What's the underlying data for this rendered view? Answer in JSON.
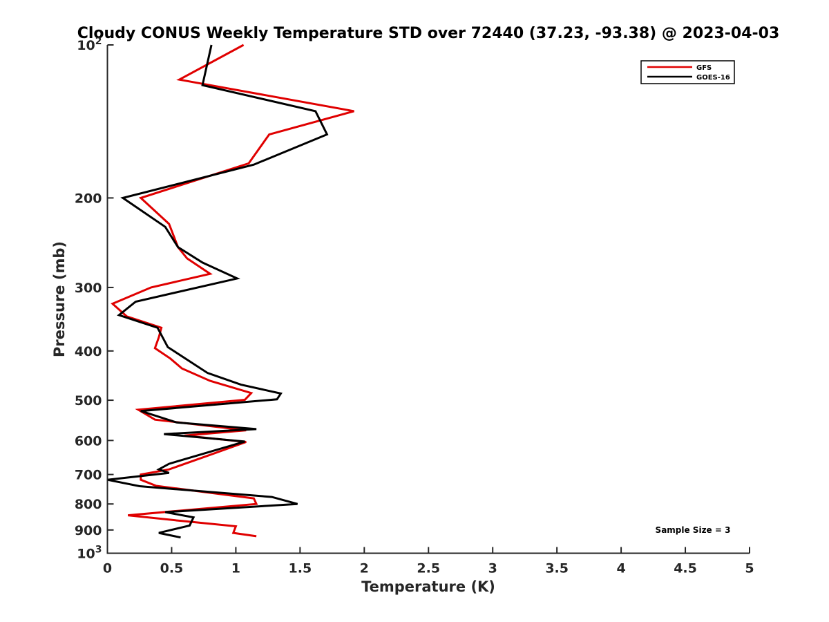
{
  "chart_data": {
    "type": "line",
    "title": "Cloudy CONUS Weekly Temperature STD over 72440 (37.23, -93.38) @ 2023-04-03",
    "xlabel": "Temperature (K)",
    "ylabel": "Pressure (mb)",
    "xlim": [
      0,
      5
    ],
    "ylim": [
      100,
      1000
    ],
    "y_scale": "log",
    "y_reversed": true,
    "x_ticks": [
      "0",
      "0.5",
      "1",
      "1.5",
      "2",
      "2.5",
      "3",
      "3.5",
      "4",
      "4.5",
      "5"
    ],
    "y_ticks": [
      {
        "value": 100,
        "label": "10",
        "sup": "2"
      },
      {
        "value": 200,
        "label": "200",
        "sup": ""
      },
      {
        "value": 300,
        "label": "300",
        "sup": ""
      },
      {
        "value": 400,
        "label": "400",
        "sup": ""
      },
      {
        "value": 500,
        "label": "500",
        "sup": ""
      },
      {
        "value": 600,
        "label": "600",
        "sup": ""
      },
      {
        "value": 700,
        "label": "700",
        "sup": ""
      },
      {
        "value": 800,
        "label": "800",
        "sup": ""
      },
      {
        "value": 900,
        "label": "900",
        "sup": ""
      },
      {
        "value": 1000,
        "label": "10",
        "sup": "3"
      }
    ],
    "grid": false,
    "legend_position": "top-right",
    "series": [
      {
        "name": "GFS",
        "color": "#e00000",
        "points": [
          [
            1.06,
            100
          ],
          [
            0.56,
            117
          ],
          [
            1.92,
            135
          ],
          [
            1.26,
            150
          ],
          [
            1.1,
            171
          ],
          [
            0.26,
            200
          ],
          [
            0.48,
            225
          ],
          [
            0.55,
            250
          ],
          [
            0.62,
            263
          ],
          [
            0.8,
            282
          ],
          [
            0.34,
            300
          ],
          [
            0.04,
            323
          ],
          [
            0.15,
            342
          ],
          [
            0.42,
            360
          ],
          [
            0.4,
            376
          ],
          [
            0.37,
            395
          ],
          [
            0.49,
            414
          ],
          [
            0.58,
            433
          ],
          [
            0.8,
            458
          ],
          [
            1.12,
            484
          ],
          [
            1.07,
            499
          ],
          [
            0.24,
            522
          ],
          [
            0.37,
            546
          ],
          [
            1.08,
            573
          ],
          [
            0.6,
            587
          ],
          [
            1.08,
            604
          ],
          [
            0.78,
            643
          ],
          [
            0.48,
            684
          ],
          [
            0.26,
            700
          ],
          [
            0.26,
            717
          ],
          [
            0.38,
            737
          ],
          [
            1.14,
            780
          ],
          [
            1.16,
            800
          ],
          [
            0.16,
            842
          ],
          [
            0.58,
            864
          ],
          [
            1.0,
            885
          ],
          [
            0.98,
            912
          ],
          [
            1.16,
            926
          ]
        ]
      },
      {
        "name": "GOES-16",
        "color": "#000000",
        "points": [
          [
            0.81,
            100
          ],
          [
            0.74,
            120
          ],
          [
            1.62,
            135
          ],
          [
            1.71,
            150
          ],
          [
            1.14,
            172
          ],
          [
            0.12,
            200
          ],
          [
            0.45,
            228
          ],
          [
            0.55,
            250
          ],
          [
            0.74,
            268
          ],
          [
            1.01,
            288
          ],
          [
            0.22,
            320
          ],
          [
            0.09,
            340
          ],
          [
            0.39,
            360
          ],
          [
            0.47,
            393
          ],
          [
            0.78,
            442
          ],
          [
            1.04,
            466
          ],
          [
            1.35,
            485
          ],
          [
            1.32,
            498
          ],
          [
            0.26,
            525
          ],
          [
            0.54,
            553
          ],
          [
            1.16,
            570
          ],
          [
            0.44,
            583
          ],
          [
            1.07,
            603
          ],
          [
            0.48,
            667
          ],
          [
            0.4,
            684
          ],
          [
            0.48,
            695
          ],
          [
            0.0,
            717
          ],
          [
            0.25,
            738
          ],
          [
            1.28,
            775
          ],
          [
            1.48,
            800
          ],
          [
            0.45,
            830
          ],
          [
            0.67,
            850
          ],
          [
            0.64,
            882
          ],
          [
            0.4,
            912
          ],
          [
            0.57,
            931
          ]
        ]
      }
    ],
    "annotations": [
      "Sample Size = 3"
    ]
  }
}
